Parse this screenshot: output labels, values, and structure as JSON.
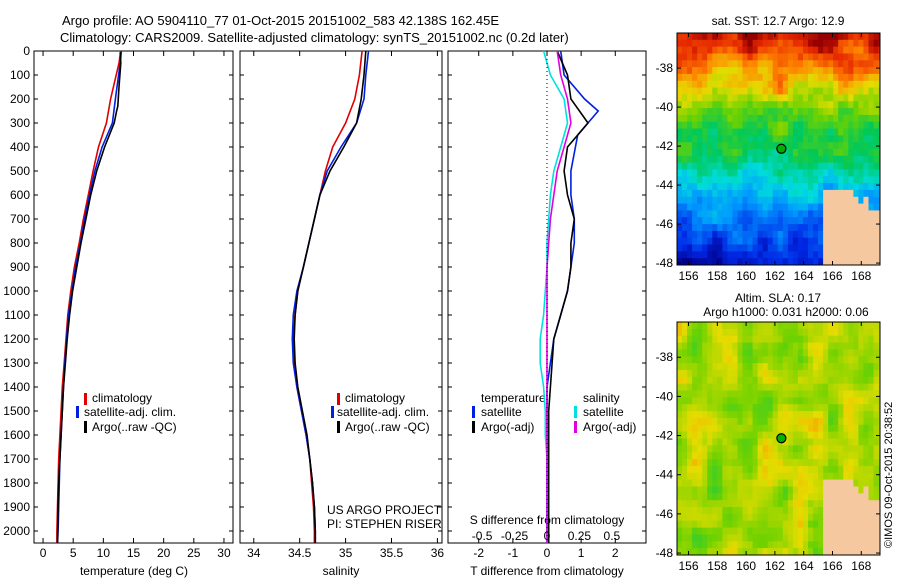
{
  "header": {
    "line1": "Argo profile: AO 5904110_77 01-Oct-2015 20151002_583 42.138S 162.45E",
    "line2": "Climatology: CARS2009. Satellite-adjusted climatology: synTS_20151002.nc (0.2d later)"
  },
  "footer": {
    "project": "US ARGO PROJECT",
    "pi": "PI: STEPHEN RISER",
    "copyright": "©IMOS 09-Oct-2015 20:38:52"
  },
  "colors": {
    "climatology": "#e00000",
    "satellite": "#0020e0",
    "argo": "#000000",
    "sat_s": "#00e0e0",
    "argo_s": "#e000e0",
    "land": "#f5c8a0",
    "float_marker": "#00b000"
  },
  "chart_data": [
    {
      "id": "temperature",
      "type": "line",
      "xlabel": "temperature (deg C)",
      "ylabel": "",
      "xlim": [
        -1.5,
        31.5
      ],
      "ylim": [
        2050,
        0
      ],
      "xticks": [
        0,
        5,
        10,
        15,
        20,
        25,
        30
      ],
      "yticks": [
        0,
        100,
        200,
        300,
        400,
        500,
        600,
        700,
        800,
        900,
        1000,
        1100,
        1200,
        1300,
        1400,
        1500,
        1600,
        1700,
        1800,
        1900,
        2000
      ],
      "legend_position": "lower-middle",
      "series": [
        {
          "name": "climatology",
          "color": "#e00000",
          "x": [
            12.9,
            12.6,
            11.2,
            10.5,
            9.2,
            8.3,
            7.5,
            6.7,
            6.0,
            5.2,
            4.6,
            4.1,
            3.8,
            3.5,
            3.2,
            3.0,
            2.8,
            2.6,
            2.5,
            2.4,
            2.3,
            2.3
          ],
          "depth": [
            0,
            50,
            200,
            300,
            400,
            500,
            600,
            700,
            800,
            900,
            1000,
            1100,
            1200,
            1300,
            1400,
            1500,
            1600,
            1700,
            1800,
            1900,
            2000,
            2050
          ]
        },
        {
          "name": "satellite-adj. clim.",
          "color": "#0020e0",
          "x": [
            13.0,
            12.8,
            12.0,
            11.5,
            9.8,
            8.6,
            7.7,
            6.9,
            6.2,
            5.4,
            4.8,
            4.2,
            3.9,
            3.6,
            3.4,
            3.2,
            3.0,
            2.8,
            2.7,
            2.6,
            2.5,
            2.4
          ],
          "depth": [
            0,
            50,
            200,
            300,
            400,
            500,
            600,
            700,
            800,
            900,
            1000,
            1100,
            1200,
            1300,
            1400,
            1500,
            1600,
            1700,
            1800,
            1900,
            2000,
            2050
          ]
        },
        {
          "name": "Argo(..raw -QC)",
          "color": "#000000",
          "x": [
            12.8,
            12.9,
            12.6,
            12.4,
            12.2,
            11.8,
            10.2,
            8.9,
            7.9,
            7.1,
            6.3,
            5.6,
            4.9,
            4.4,
            4.0,
            3.7,
            3.4,
            3.2,
            3.0,
            2.8,
            2.6,
            2.5,
            2.4
          ],
          "depth": [
            5,
            50,
            150,
            230,
            250,
            300,
            400,
            500,
            600,
            700,
            800,
            900,
            1000,
            1100,
            1200,
            1300,
            1400,
            1500,
            1600,
            1700,
            1800,
            1900,
            2050
          ]
        }
      ]
    },
    {
      "id": "salinity",
      "type": "line",
      "xlabel": "salinity",
      "ylabel": "",
      "xlim": [
        33.85,
        36.05
      ],
      "ylim": [
        2050,
        0
      ],
      "xticks": [
        34,
        34.5,
        35,
        35.5,
        36
      ],
      "legend_position": "lower-right",
      "series": [
        {
          "name": "climatology",
          "color": "#e00000",
          "x": [
            35.18,
            35.15,
            35.1,
            35.0,
            34.86,
            34.78,
            34.72,
            34.66,
            34.6,
            34.54,
            34.48,
            34.45,
            34.43,
            34.44,
            34.47,
            34.52,
            34.57,
            34.61,
            34.63,
            34.65,
            34.66,
            34.66
          ],
          "depth": [
            0,
            100,
            200,
            300,
            400,
            500,
            600,
            700,
            800,
            900,
            1000,
            1100,
            1200,
            1300,
            1400,
            1500,
            1600,
            1700,
            1800,
            1900,
            2000,
            2050
          ]
        },
        {
          "name": "satellite-adj. clim.",
          "color": "#0020e0",
          "x": [
            35.25,
            35.22,
            35.2,
            35.12,
            34.95,
            34.8,
            34.72,
            34.66,
            34.6,
            34.54,
            34.47,
            34.43,
            34.42,
            34.43,
            34.47,
            34.52,
            34.57,
            34.61,
            34.64,
            34.66,
            34.67,
            34.67
          ],
          "depth": [
            0,
            100,
            200,
            300,
            400,
            500,
            600,
            700,
            800,
            900,
            1000,
            1100,
            1200,
            1300,
            1400,
            1500,
            1600,
            1700,
            1800,
            1900,
            2000,
            2050
          ]
        },
        {
          "name": "Argo(..raw -QC)",
          "color": "#000000",
          "x": [
            35.22,
            35.2,
            35.17,
            35.12,
            34.98,
            34.83,
            34.72,
            34.66,
            34.6,
            34.54,
            34.48,
            34.45,
            34.44,
            34.45,
            34.48,
            34.53,
            34.58,
            34.61,
            34.64,
            34.66,
            34.67,
            34.67
          ],
          "depth": [
            0,
            100,
            200,
            300,
            400,
            500,
            600,
            700,
            800,
            900,
            1000,
            1100,
            1200,
            1300,
            1400,
            1500,
            1600,
            1700,
            1800,
            1900,
            2000,
            2050
          ]
        }
      ]
    },
    {
      "id": "difference",
      "type": "line",
      "xlabel": "T difference from climatology",
      "xlabel_top": "S difference from climatology",
      "xlim": [
        -2.9,
        2.9
      ],
      "ylim": [
        2050,
        0
      ],
      "xticks": [
        -2,
        -1,
        0,
        1,
        2
      ],
      "xticks_s": [
        "-0.5",
        "-0.25",
        "0",
        "0.25",
        "0.5"
      ],
      "legend_position": "lower-middle",
      "legend_headers": [
        "temperature",
        "salinity"
      ],
      "series": [
        {
          "name": "satellite",
          "group": "temperature",
          "color": "#0020e0",
          "x": [
            0.4,
            0.5,
            1.1,
            1.5,
            0.9,
            0.7,
            0.7,
            0.8,
            0.8,
            0.7,
            0.6,
            0.4,
            0.2,
            0.1,
            0.0,
            0.0,
            0.0,
            0.0,
            0.0,
            0.0,
            0.0,
            0.0
          ],
          "depth": [
            0,
            100,
            200,
            250,
            350,
            500,
            600,
            700,
            800,
            900,
            1000,
            1100,
            1200,
            1300,
            1400,
            1500,
            1600,
            1700,
            1800,
            1900,
            2000,
            2050
          ]
        },
        {
          "name": "Argo(-adj)",
          "group": "temperature",
          "color": "#000000",
          "x": [
            0.3,
            0.6,
            0.7,
            1.2,
            0.6,
            0.5,
            0.6,
            0.8,
            0.7,
            0.7,
            0.6,
            0.4,
            0.2,
            0.15,
            0.1,
            0.05,
            0.05,
            0.05,
            0.05,
            0.05,
            0.05,
            0.05
          ],
          "depth": [
            0,
            100,
            200,
            300,
            400,
            500,
            600,
            700,
            800,
            900,
            1000,
            1100,
            1200,
            1300,
            1400,
            1500,
            1600,
            1700,
            1800,
            1900,
            2000,
            2050
          ]
        },
        {
          "name": "satellite",
          "group": "salinity",
          "color": "#00e0e0",
          "x": [
            -0.1,
            0.1,
            0.5,
            0.6,
            0.4,
            0.2,
            0.1,
            0.05,
            0.0,
            0.0,
            -0.05,
            -0.1,
            -0.2,
            -0.2,
            -0.1,
            -0.05,
            -0.05,
            0.0,
            0.0,
            0.0,
            0.0,
            0.0
          ],
          "depth": [
            0,
            100,
            200,
            300,
            400,
            500,
            600,
            700,
            800,
            900,
            1000,
            1100,
            1200,
            1300,
            1400,
            1500,
            1600,
            1700,
            1800,
            1900,
            2000,
            2050
          ]
        },
        {
          "name": "Argo(-adj)",
          "group": "salinity",
          "color": "#e000e0",
          "x": [
            0.3,
            0.4,
            0.6,
            0.7,
            0.5,
            0.3,
            0.2,
            0.1,
            0.05,
            0.0,
            0.0,
            0.0,
            0.0,
            0.0,
            0.0,
            0.0,
            0.0,
            0.0,
            0.0,
            0.0,
            0.0,
            0.0
          ],
          "depth": [
            0,
            100,
            200,
            300,
            400,
            500,
            600,
            700,
            800,
            900,
            1000,
            1100,
            1200,
            1300,
            1400,
            1500,
            1600,
            1700,
            1800,
            1900,
            2000,
            2050
          ]
        }
      ]
    },
    {
      "id": "sst-map",
      "type": "heatmap",
      "title": "sat. SST: 12.7  Argo: 12.9",
      "xlim": [
        155.2,
        169.3
      ],
      "ylim": [
        -48.1,
        -36.2
      ],
      "xticks": [
        156,
        158,
        160,
        162,
        164,
        166,
        168
      ],
      "yticks": [
        -38,
        -40,
        -42,
        -44,
        -46,
        -48
      ],
      "float_position": {
        "lon": 162.45,
        "lat": -42.138
      }
    },
    {
      "id": "sla-map",
      "type": "heatmap",
      "title": "Altim. SLA: 0.17",
      "subtitle": "Argo h1000: 0.031 h2000: 0.06",
      "xlim": [
        155.2,
        169.3
      ],
      "ylim": [
        -48.1,
        -36.2
      ],
      "xticks": [
        156,
        158,
        160,
        162,
        164,
        166,
        168
      ],
      "yticks": [
        -38,
        -40,
        -42,
        -44,
        -46,
        -48
      ],
      "float_position": {
        "lon": 162.45,
        "lat": -42.138
      }
    }
  ]
}
